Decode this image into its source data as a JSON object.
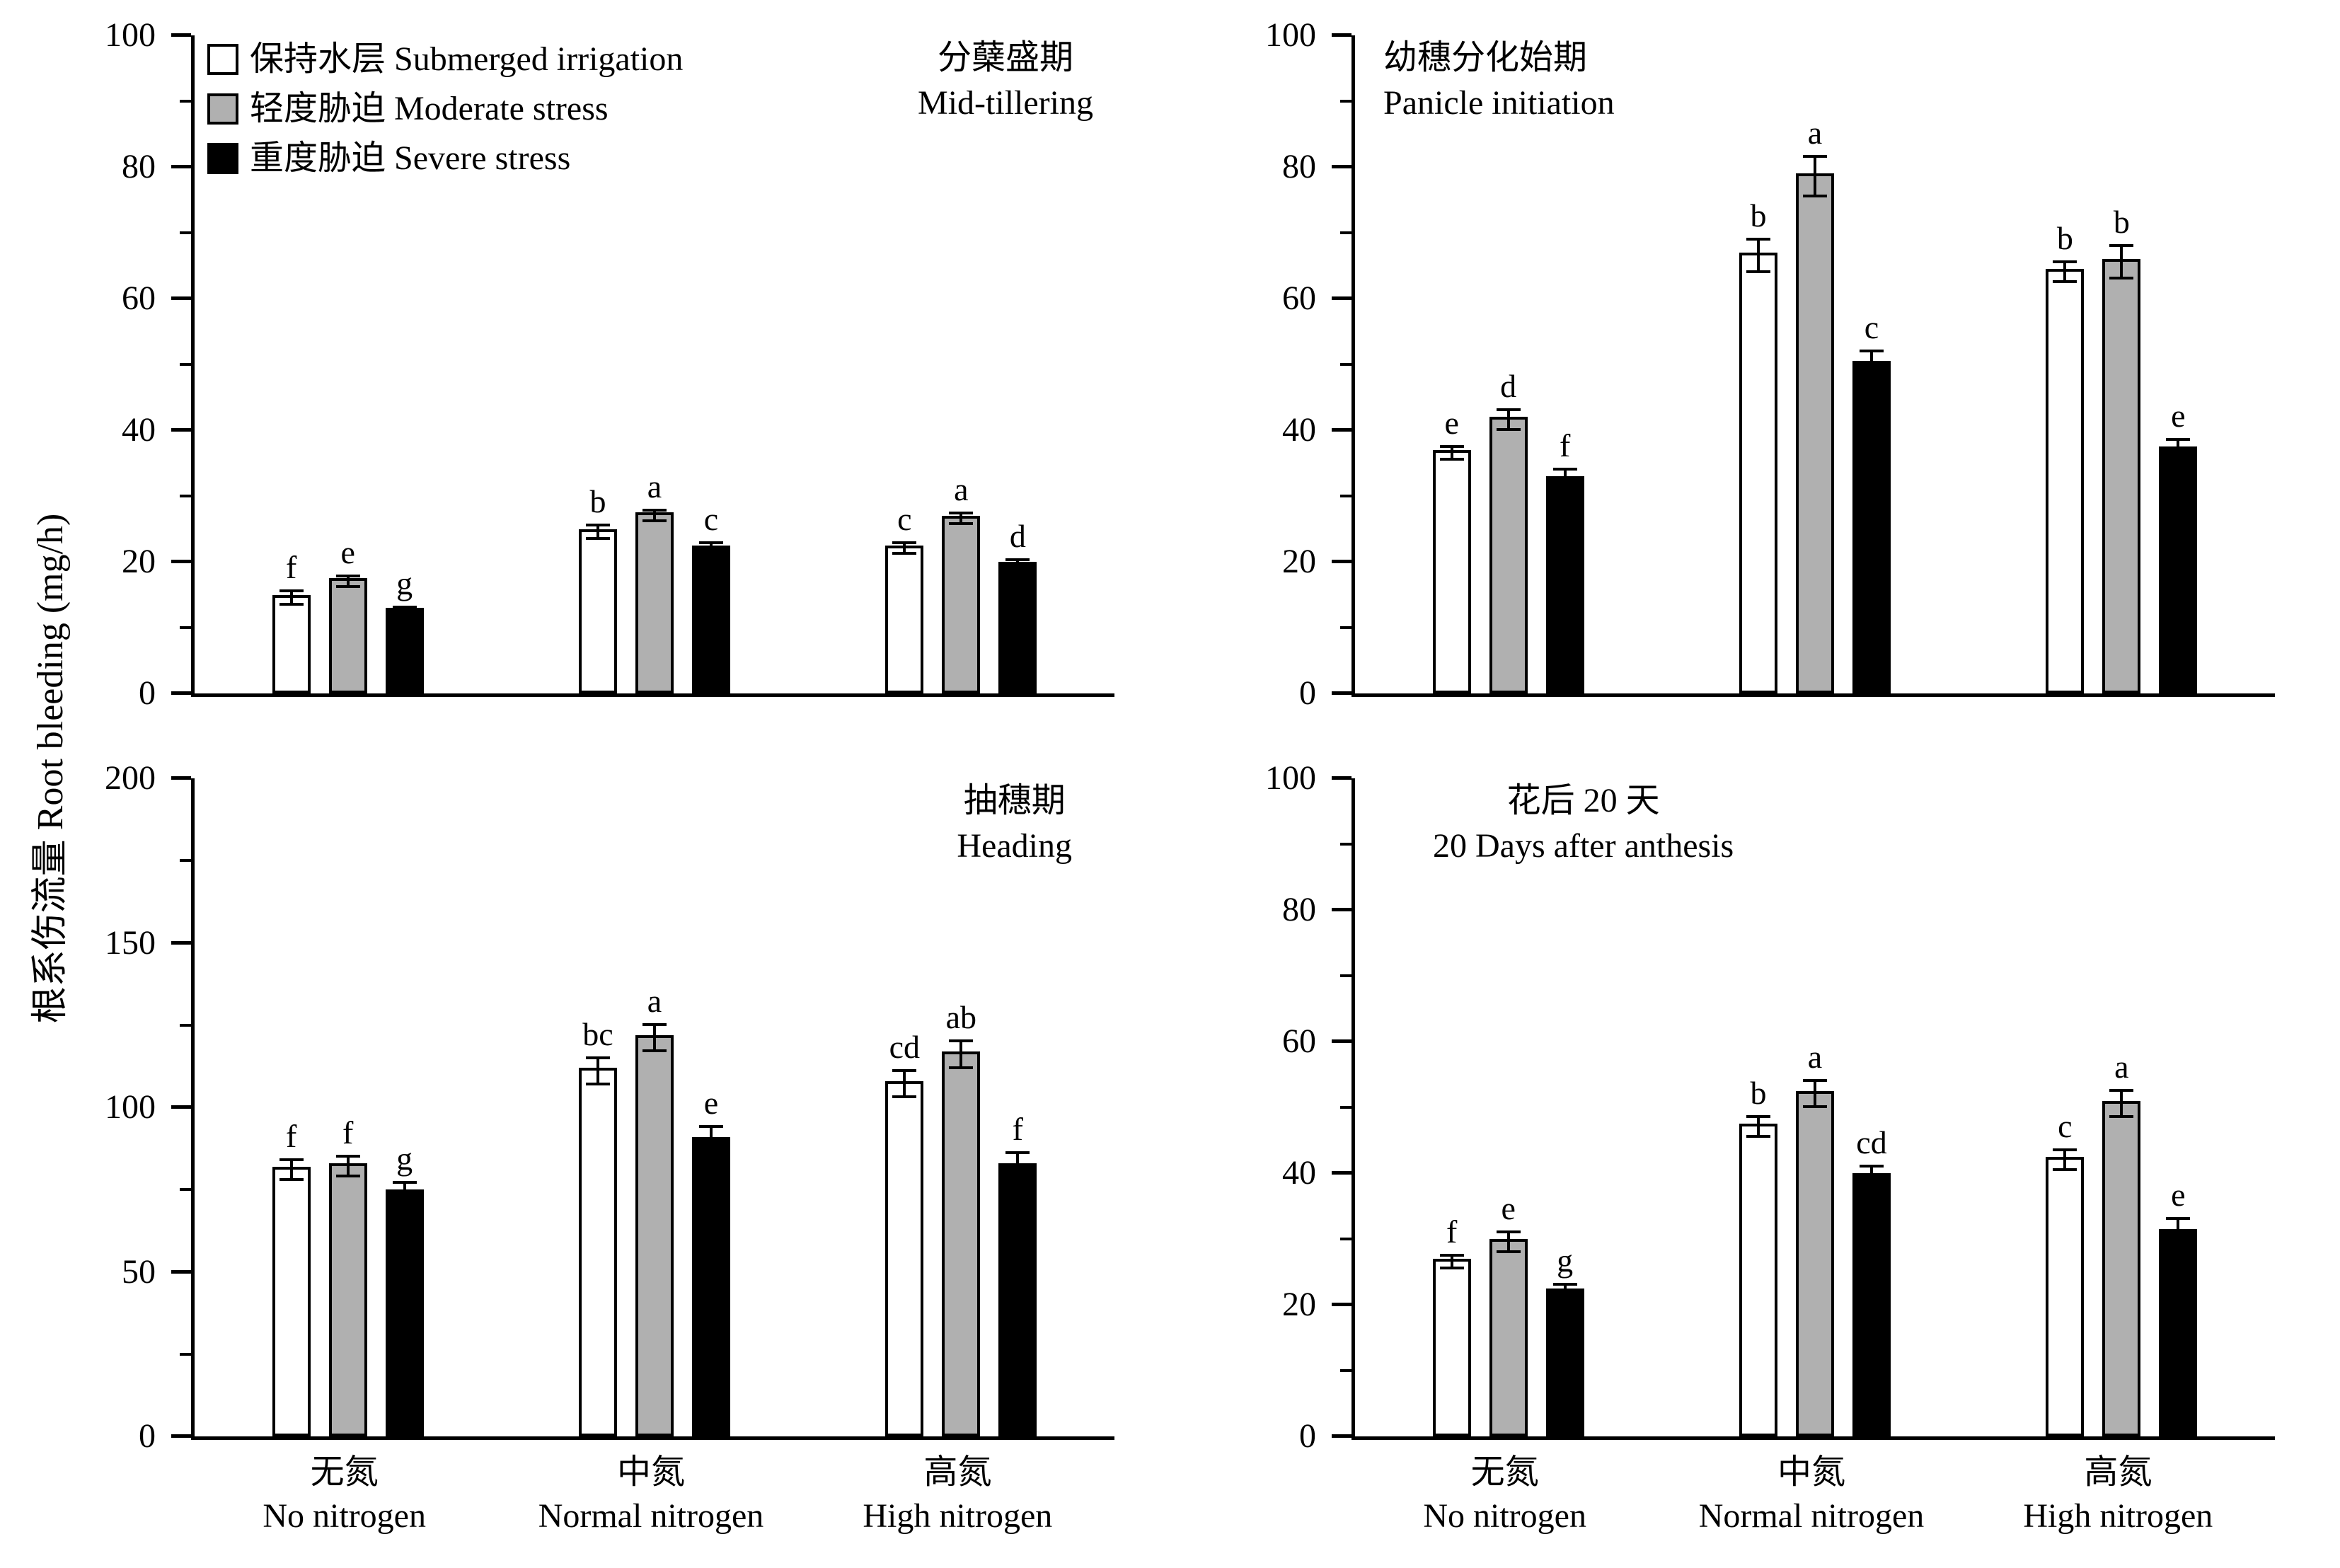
{
  "figure": {
    "ylabel": "根系伤流量 Root bleeding (mg/h)"
  },
  "legend": [
    {
      "label": "保持水层 Submerged irrigation",
      "color": "#ffffff"
    },
    {
      "label": "轻度胁迫 Moderate stress",
      "color": "#b0b0b0"
    },
    {
      "label": "重度胁迫 Severe stress",
      "color": "#000000"
    }
  ],
  "x_categories": [
    {
      "zh": "无氮",
      "en": "No nitrogen"
    },
    {
      "zh": "中氮",
      "en": "Normal nitrogen"
    },
    {
      "zh": "高氮",
      "en": "High nitrogen"
    }
  ],
  "chart_data": [
    {
      "type": "bar",
      "title_zh": "分蘖盛期",
      "title_en": "Mid-tillering",
      "ylabel": "根系伤流量 Root bleeding (mg/h)",
      "ylim": [
        0,
        100
      ],
      "yticks": [
        0,
        20,
        40,
        60,
        80,
        100
      ],
      "categories": [
        "无氮 No nitrogen",
        "中氮 Normal nitrogen",
        "高氮 High nitrogen"
      ],
      "series": [
        {
          "name": "保持水层 Submerged irrigation",
          "values": [
            15,
            25,
            22.5
          ],
          "errors": [
            1,
            1,
            0.8
          ],
          "letters": [
            "f",
            "b",
            "c"
          ]
        },
        {
          "name": "轻度胁迫 Moderate stress",
          "values": [
            17.5,
            27.5,
            27
          ],
          "errors": [
            0.8,
            0.8,
            0.8
          ],
          "letters": [
            "e",
            "a",
            "a"
          ]
        },
        {
          "name": "重度胁迫 Severe stress",
          "values": [
            13,
            22.5,
            20
          ],
          "errors": [
            0.6,
            0.8,
            0.8
          ],
          "letters": [
            "g",
            "c",
            "d"
          ]
        }
      ]
    },
    {
      "type": "bar",
      "title_zh": "幼穗分化始期",
      "title_en": "Panicle initiation",
      "ylabel": "根系伤流量 Root bleeding (mg/h)",
      "ylim": [
        0,
        100
      ],
      "yticks": [
        0,
        20,
        40,
        60,
        80,
        100
      ],
      "categories": [
        "无氮 No nitrogen",
        "中氮 Normal nitrogen",
        "高氮 High nitrogen"
      ],
      "series": [
        {
          "name": "保持水层 Submerged irrigation",
          "values": [
            37,
            67,
            64.5
          ],
          "errors": [
            1,
            2.5,
            1.5
          ],
          "letters": [
            "e",
            "b",
            "b"
          ]
        },
        {
          "name": "轻度胁迫 Moderate stress",
          "values": [
            42,
            79,
            66
          ],
          "errors": [
            1.5,
            3,
            2.5
          ],
          "letters": [
            "d",
            "a",
            "b"
          ]
        },
        {
          "name": "重度胁迫 Severe stress",
          "values": [
            33,
            50.5,
            37.5
          ],
          "errors": [
            1.5,
            2,
            1.5
          ],
          "letters": [
            "f",
            "c",
            "e"
          ]
        }
      ]
    },
    {
      "type": "bar",
      "title_zh": "抽穗期",
      "title_en": "Heading",
      "ylabel": "根系伤流量 Root bleeding (mg/h)",
      "ylim": [
        0,
        200
      ],
      "yticks": [
        0,
        50,
        100,
        150,
        200
      ],
      "categories": [
        "无氮 No nitrogen",
        "中氮 Normal nitrogen",
        "高氮 High nitrogen"
      ],
      "series": [
        {
          "name": "保持水层 Submerged irrigation",
          "values": [
            82,
            112,
            108
          ],
          "errors": [
            3,
            4,
            4
          ],
          "letters": [
            "f",
            "bc",
            "cd"
          ]
        },
        {
          "name": "轻度胁迫 Moderate stress",
          "values": [
            83,
            122,
            117
          ],
          "errors": [
            3,
            4,
            4
          ],
          "letters": [
            "f",
            "a",
            "ab"
          ]
        },
        {
          "name": "重度胁迫 Severe stress",
          "values": [
            75,
            91,
            83
          ],
          "errors": [
            3,
            4,
            4
          ],
          "letters": [
            "g",
            "e",
            "f"
          ]
        }
      ]
    },
    {
      "type": "bar",
      "title_zh": "花后 20 天",
      "title_en": "20 Days after anthesis",
      "ylabel": "根系伤流量 Root bleeding (mg/h)",
      "ylim": [
        0,
        100
      ],
      "yticks": [
        0,
        20,
        40,
        60,
        80,
        100
      ],
      "categories": [
        "无氮 No nitrogen",
        "中氮 Normal nitrogen",
        "高氮 High nitrogen"
      ],
      "series": [
        {
          "name": "保持水层 Submerged irrigation",
          "values": [
            27,
            47.5,
            42.5
          ],
          "errors": [
            1,
            1.5,
            1.5
          ],
          "letters": [
            "f",
            "b",
            "c"
          ]
        },
        {
          "name": "轻度胁迫 Moderate stress",
          "values": [
            30,
            52.5,
            51
          ],
          "errors": [
            1.5,
            2,
            2
          ],
          "letters": [
            "e",
            "a",
            "a"
          ]
        },
        {
          "name": "重度胁迫 Severe stress",
          "values": [
            22.5,
            40,
            31.5
          ],
          "errors": [
            1,
            1.5,
            2
          ],
          "letters": [
            "g",
            "cd",
            "e"
          ]
        }
      ]
    }
  ]
}
